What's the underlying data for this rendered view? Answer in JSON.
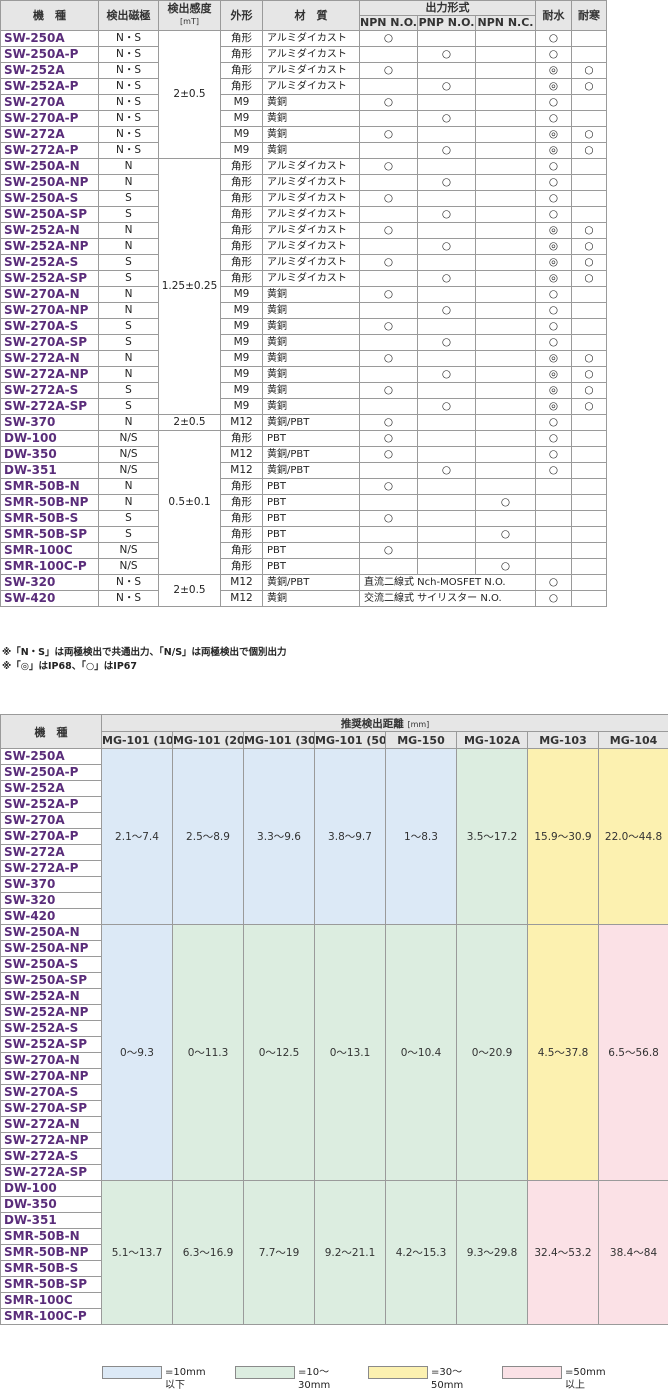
{
  "spec_table": {
    "headers": {
      "model": "機　種",
      "pole": "検出磁極",
      "sensitivity": "検出感度",
      "sensitivity_unit": "[mT]",
      "shape": "外形",
      "material": "材　質",
      "output": "出力形式",
      "npn_no": "NPN N.O.",
      "pnp_no": "PNP N.O.",
      "npn_nc": "NPN N.C.",
      "water": "耐水",
      "cold": "耐寒"
    },
    "rows": [
      {
        "model": "SW-250A",
        "pole": "N・S",
        "sens": "2±0.5",
        "shape": "角形",
        "mat": "アルミダイカスト",
        "npn": "○",
        "pnp": "",
        "nc": "",
        "water": "○",
        "cold": ""
      },
      {
        "model": "SW-250A-P",
        "pole": "N・S",
        "shape": "角形",
        "mat": "アルミダイカスト",
        "npn": "",
        "pnp": "○",
        "nc": "",
        "water": "○",
        "cold": ""
      },
      {
        "model": "SW-252A",
        "pole": "N・S",
        "shape": "角形",
        "mat": "アルミダイカスト",
        "npn": "○",
        "pnp": "",
        "nc": "",
        "water": "◎",
        "cold": "○"
      },
      {
        "model": "SW-252A-P",
        "pole": "N・S",
        "shape": "角形",
        "mat": "アルミダイカスト",
        "npn": "",
        "pnp": "○",
        "nc": "",
        "water": "◎",
        "cold": "○"
      },
      {
        "model": "SW-270A",
        "pole": "N・S",
        "shape": "M9",
        "mat": "黄銅",
        "npn": "○",
        "pnp": "",
        "nc": "",
        "water": "○",
        "cold": ""
      },
      {
        "model": "SW-270A-P",
        "pole": "N・S",
        "shape": "M9",
        "mat": "黄銅",
        "npn": "",
        "pnp": "○",
        "nc": "",
        "water": "○",
        "cold": ""
      },
      {
        "model": "SW-272A",
        "pole": "N・S",
        "shape": "M9",
        "mat": "黄銅",
        "npn": "○",
        "pnp": "",
        "nc": "",
        "water": "◎",
        "cold": "○"
      },
      {
        "model": "SW-272A-P",
        "pole": "N・S",
        "shape": "M9",
        "mat": "黄銅",
        "npn": "",
        "pnp": "○",
        "nc": "",
        "water": "◎",
        "cold": "○"
      },
      {
        "model": "SW-250A-N",
        "pole": "N",
        "sens": "1.25±0.25",
        "shape": "角形",
        "mat": "アルミダイカスト",
        "npn": "○",
        "pnp": "",
        "nc": "",
        "water": "○",
        "cold": ""
      },
      {
        "model": "SW-250A-NP",
        "pole": "N",
        "shape": "角形",
        "mat": "アルミダイカスト",
        "npn": "",
        "pnp": "○",
        "nc": "",
        "water": "○",
        "cold": ""
      },
      {
        "model": "SW-250A-S",
        "pole": "S",
        "shape": "角形",
        "mat": "アルミダイカスト",
        "npn": "○",
        "pnp": "",
        "nc": "",
        "water": "○",
        "cold": ""
      },
      {
        "model": "SW-250A-SP",
        "pole": "S",
        "shape": "角形",
        "mat": "アルミダイカスト",
        "npn": "",
        "pnp": "○",
        "nc": "",
        "water": "○",
        "cold": ""
      },
      {
        "model": "SW-252A-N",
        "pole": "N",
        "shape": "角形",
        "mat": "アルミダイカスト",
        "npn": "○",
        "pnp": "",
        "nc": "",
        "water": "◎",
        "cold": "○"
      },
      {
        "model": "SW-252A-NP",
        "pole": "N",
        "shape": "角形",
        "mat": "アルミダイカスト",
        "npn": "",
        "pnp": "○",
        "nc": "",
        "water": "◎",
        "cold": "○"
      },
      {
        "model": "SW-252A-S",
        "pole": "S",
        "shape": "角形",
        "mat": "アルミダイカスト",
        "npn": "○",
        "pnp": "",
        "nc": "",
        "water": "◎",
        "cold": "○"
      },
      {
        "model": "SW-252A-SP",
        "pole": "S",
        "shape": "角形",
        "mat": "アルミダイカスト",
        "npn": "",
        "pnp": "○",
        "nc": "",
        "water": "◎",
        "cold": "○"
      },
      {
        "model": "SW-270A-N",
        "pole": "N",
        "shape": "M9",
        "mat": "黄銅",
        "npn": "○",
        "pnp": "",
        "nc": "",
        "water": "○",
        "cold": ""
      },
      {
        "model": "SW-270A-NP",
        "pole": "N",
        "shape": "M9",
        "mat": "黄銅",
        "npn": "",
        "pnp": "○",
        "nc": "",
        "water": "○",
        "cold": ""
      },
      {
        "model": "SW-270A-S",
        "pole": "S",
        "shape": "M9",
        "mat": "黄銅",
        "npn": "○",
        "pnp": "",
        "nc": "",
        "water": "○",
        "cold": ""
      },
      {
        "model": "SW-270A-SP",
        "pole": "S",
        "shape": "M9",
        "mat": "黄銅",
        "npn": "",
        "pnp": "○",
        "nc": "",
        "water": "○",
        "cold": ""
      },
      {
        "model": "SW-272A-N",
        "pole": "N",
        "shape": "M9",
        "mat": "黄銅",
        "npn": "○",
        "pnp": "",
        "nc": "",
        "water": "◎",
        "cold": "○"
      },
      {
        "model": "SW-272A-NP",
        "pole": "N",
        "shape": "M9",
        "mat": "黄銅",
        "npn": "",
        "pnp": "○",
        "nc": "",
        "water": "◎",
        "cold": "○"
      },
      {
        "model": "SW-272A-S",
        "pole": "S",
        "shape": "M9",
        "mat": "黄銅",
        "npn": "○",
        "pnp": "",
        "nc": "",
        "water": "◎",
        "cold": "○"
      },
      {
        "model": "SW-272A-SP",
        "pole": "S",
        "shape": "M9",
        "mat": "黄銅",
        "npn": "",
        "pnp": "○",
        "nc": "",
        "water": "◎",
        "cold": "○"
      },
      {
        "model": "SW-370",
        "pole": "N",
        "sens": "2±0.5",
        "shape": "M12",
        "mat": "黄銅/PBT",
        "npn": "○",
        "pnp": "",
        "nc": "",
        "water": "○",
        "cold": ""
      },
      {
        "model": "DW-100",
        "pole": "N/S",
        "sens": "0.5±0.1",
        "shape": "角形",
        "mat": "PBT",
        "npn": "○",
        "pnp": "",
        "nc": "",
        "water": "○",
        "cold": ""
      },
      {
        "model": "DW-350",
        "pole": "N/S",
        "shape": "M12",
        "mat": "黄銅/PBT",
        "npn": "○",
        "pnp": "",
        "nc": "",
        "water": "○",
        "cold": ""
      },
      {
        "model": "DW-351",
        "pole": "N/S",
        "shape": "M12",
        "mat": "黄銅/PBT",
        "npn": "",
        "pnp": "○",
        "nc": "",
        "water": "○",
        "cold": ""
      },
      {
        "model": "SMR-50B-N",
        "pole": "N",
        "shape": "角形",
        "mat": "PBT",
        "npn": "○",
        "pnp": "",
        "nc": "",
        "water": "",
        "cold": ""
      },
      {
        "model": "SMR-50B-NP",
        "pole": "N",
        "shape": "角形",
        "mat": "PBT",
        "npn": "",
        "pnp": "",
        "nc": "○",
        "water": "",
        "cold": ""
      },
      {
        "model": "SMR-50B-S",
        "pole": "S",
        "shape": "角形",
        "mat": "PBT",
        "npn": "○",
        "pnp": "",
        "nc": "",
        "water": "",
        "cold": ""
      },
      {
        "model": "SMR-50B-SP",
        "pole": "S",
        "shape": "角形",
        "mat": "PBT",
        "npn": "",
        "pnp": "",
        "nc": "○",
        "water": "",
        "cold": ""
      },
      {
        "model": "SMR-100C",
        "pole": "N/S",
        "shape": "角形",
        "mat": "PBT",
        "npn": "○",
        "pnp": "",
        "nc": "",
        "water": "",
        "cold": ""
      },
      {
        "model": "SMR-100C-P",
        "pole": "N/S",
        "shape": "角形",
        "mat": "PBT",
        "npn": "",
        "pnp": "",
        "nc": "○",
        "water": "",
        "cold": ""
      },
      {
        "model": "SW-320",
        "pole": "N・S",
        "sens": "2±0.5",
        "shape": "M12",
        "mat": "黄銅/PBT",
        "note": "直流二線式 Nch-MOSFET N.O.",
        "water": "○",
        "cold": ""
      },
      {
        "model": "SW-420",
        "pole": "N・S",
        "shape": "M12",
        "mat": "黄銅",
        "note": "交流二線式 サイリスター N.O.",
        "water": "○",
        "cold": ""
      }
    ]
  },
  "notes": {
    "line1": "※「N・S」は両極検出で共通出力、「N/S」は両極検出で個別出力",
    "line2": "※「◎」はIP68、「○」はIP67"
  },
  "distance_table": {
    "header_model": "機　種",
    "header_group": "推奨検出距離",
    "header_unit": "[mm]",
    "magnets": [
      "MG-101 (10)",
      "MG-101 (20)",
      "MG-101 (30)",
      "MG-101 (50)",
      "MG-150",
      "MG-102A",
      "MG-103",
      "MG-104"
    ],
    "groups": [
      {
        "models": [
          "SW-250A",
          "SW-250A-P",
          "SW-252A",
          "SW-252A-P",
          "SW-270A",
          "SW-270A-P",
          "SW-272A",
          "SW-272A-P",
          "SW-370",
          "SW-320",
          "SW-420"
        ],
        "ranges": [
          "2.1〜7.4",
          "2.5〜8.9",
          "3.3〜9.6",
          "3.8〜9.7",
          "1〜8.3",
          "3.5〜17.2",
          "15.9〜30.9",
          "22.0〜44.8"
        ],
        "colors": [
          "#dce9f6",
          "#dce9f6",
          "#dce9f6",
          "#dce9f6",
          "#dce9f6",
          "#dcede0",
          "#fcf1b0",
          "#fcf1b0"
        ]
      },
      {
        "models": [
          "SW-250A-N",
          "SW-250A-NP",
          "SW-250A-S",
          "SW-250A-SP",
          "SW-252A-N",
          "SW-252A-NP",
          "SW-252A-S",
          "SW-252A-SP",
          "SW-270A-N",
          "SW-270A-NP",
          "SW-270A-S",
          "SW-270A-SP",
          "SW-272A-N",
          "SW-272A-NP",
          "SW-272A-S",
          "SW-272A-SP"
        ],
        "ranges": [
          "0〜9.3",
          "0〜11.3",
          "0〜12.5",
          "0〜13.1",
          "0〜10.4",
          "0〜20.9",
          "4.5〜37.8",
          "6.5〜56.8"
        ],
        "colors": [
          "#dce9f6",
          "#dcede0",
          "#dcede0",
          "#dcede0",
          "#dcede0",
          "#dcede0",
          "#fcf1b0",
          "#fbe1e6"
        ]
      },
      {
        "models": [
          "DW-100",
          "DW-350",
          "DW-351",
          "SMR-50B-N",
          "SMR-50B-NP",
          "SMR-50B-S",
          "SMR-50B-SP",
          "SMR-100C",
          "SMR-100C-P"
        ],
        "ranges": [
          "5.1〜13.7",
          "6.3〜16.9",
          "7.7〜19",
          "9.2〜21.1",
          "4.2〜15.3",
          "9.3〜29.8",
          "32.4〜53.2",
          "38.4〜84"
        ],
        "colors": [
          "#dcede0",
          "#dcede0",
          "#dcede0",
          "#dcede0",
          "#dcede0",
          "#dcede0",
          "#fbe1e6",
          "#fbe1e6"
        ]
      }
    ]
  },
  "legend": [
    {
      "color": "#dce9f6",
      "label": "=10mm以下"
    },
    {
      "color": "#dcede0",
      "label": "=10〜30mm"
    },
    {
      "color": "#fcf1b0",
      "label": "=30〜50mm"
    },
    {
      "color": "#fbe1e6",
      "label": "=50mm以上"
    }
  ]
}
